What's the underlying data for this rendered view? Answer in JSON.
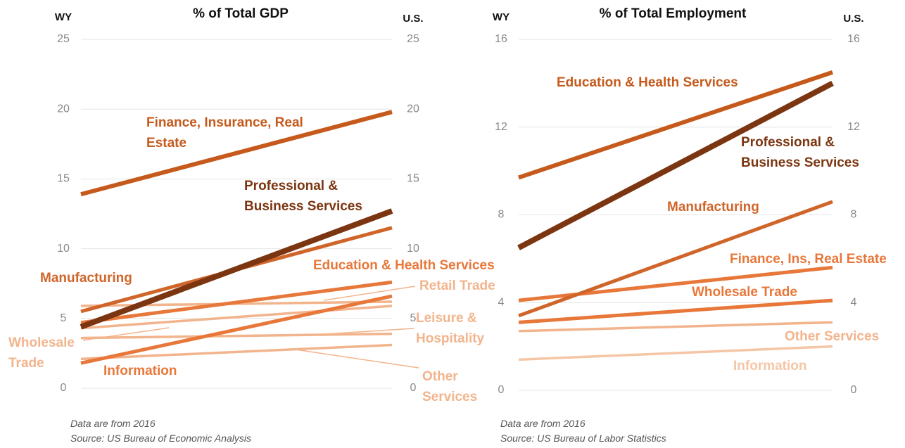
{
  "chart_data": [
    {
      "type": "slope",
      "title": "% of Total GDP",
      "categories": [
        "WY",
        "U.S."
      ],
      "ylim": [
        0,
        25
      ],
      "yticks": [
        0,
        5,
        10,
        15,
        20,
        25
      ],
      "grid": true,
      "series": [
        {
          "name": "Finance, Insurance, Real Estate",
          "color": "#c55a1c",
          "values": [
            13.9,
            19.8
          ]
        },
        {
          "name": "Professional & Business Services",
          "color": "#7b3510",
          "values": [
            4.4,
            12.7
          ]
        },
        {
          "name": "Manufacturing",
          "color": "#d0652a",
          "values": [
            5.5,
            11.5
          ]
        },
        {
          "name": "Education & Health Services",
          "color": "#e8773a",
          "values": [
            4.7,
            7.6
          ]
        },
        {
          "name": "Information",
          "color": "#e8773a",
          "values": [
            1.8,
            6.6
          ]
        },
        {
          "name": "Retail Trade",
          "color": "#f2b48c",
          "values": [
            5.9,
            6.2
          ]
        },
        {
          "name": "Wholesale Trade",
          "color": "#f2b48c",
          "values": [
            4.3,
            5.9
          ]
        },
        {
          "name": "Leisure & Hospitality",
          "color": "#f2b48c",
          "values": [
            3.6,
            3.9
          ]
        },
        {
          "name": "Other Services",
          "color": "#f2b48c",
          "values": [
            2.1,
            3.1
          ]
        }
      ],
      "notes": [
        "Data are from 2016",
        "Source: US Bureau of Economic Analysis"
      ]
    },
    {
      "type": "slope",
      "title": "% of Total Employment",
      "categories": [
        "WY",
        "U.S."
      ],
      "ylim": [
        0,
        16
      ],
      "yticks": [
        0,
        4,
        8,
        12,
        16
      ],
      "grid": true,
      "series": [
        {
          "name": "Education & Health Services",
          "color": "#c55a1c",
          "values": [
            9.7,
            14.5
          ]
        },
        {
          "name": "Professional & Business Services",
          "color": "#7b3510",
          "values": [
            6.5,
            14.0
          ]
        },
        {
          "name": "Manufacturing",
          "color": "#d0652a",
          "values": [
            3.4,
            8.6
          ]
        },
        {
          "name": "Finance, Ins, Real Estate",
          "color": "#e8773a",
          "values": [
            4.1,
            5.6
          ]
        },
        {
          "name": "Wholesale Trade",
          "color": "#e8773a",
          "values": [
            3.1,
            4.1
          ]
        },
        {
          "name": "Other Services",
          "color": "#f2b48c",
          "values": [
            2.7,
            3.1
          ]
        },
        {
          "name": "Information",
          "color": "#f5c6a5",
          "values": [
            1.4,
            2.0
          ]
        }
      ],
      "notes": [
        "Data are from 2016",
        "Source: US Bureau of Labor Statistics"
      ]
    }
  ]
}
